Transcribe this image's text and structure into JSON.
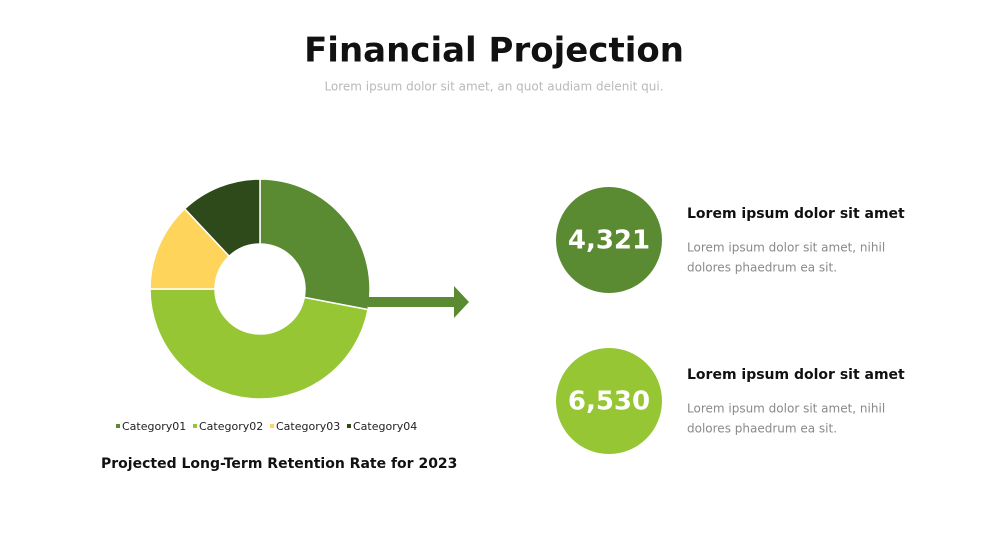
{
  "header": {
    "title": "Financial Projection",
    "subtitle": "Lorem ipsum dolor sit amet, an quot audiam delenit qui."
  },
  "chart_data": {
    "type": "donut",
    "title": "Projected Long-Term Retention Rate for 2023",
    "categories": [
      "Category01",
      "Category02",
      "Category03",
      "Category04"
    ],
    "values": [
      28,
      47,
      13,
      12
    ],
    "colors": [
      "#5a8a32",
      "#97c634",
      "#ffd45a",
      "#2e4a1a"
    ]
  },
  "stats": [
    {
      "value": "4,321",
      "heading": "Lorem ipsum dolor sit amet",
      "lines": [
        "Lorem ipsum dolor sit amet, nihil",
        "dolores phaedrum ea sit."
      ],
      "color": "#5a8a32"
    },
    {
      "value": "6,530",
      "heading": "Lorem ipsum dolor sit amet",
      "lines": [
        "Lorem ipsum dolor sit amet, nihil",
        "dolores phaedrum ea sit."
      ],
      "color": "#97c634"
    }
  ]
}
